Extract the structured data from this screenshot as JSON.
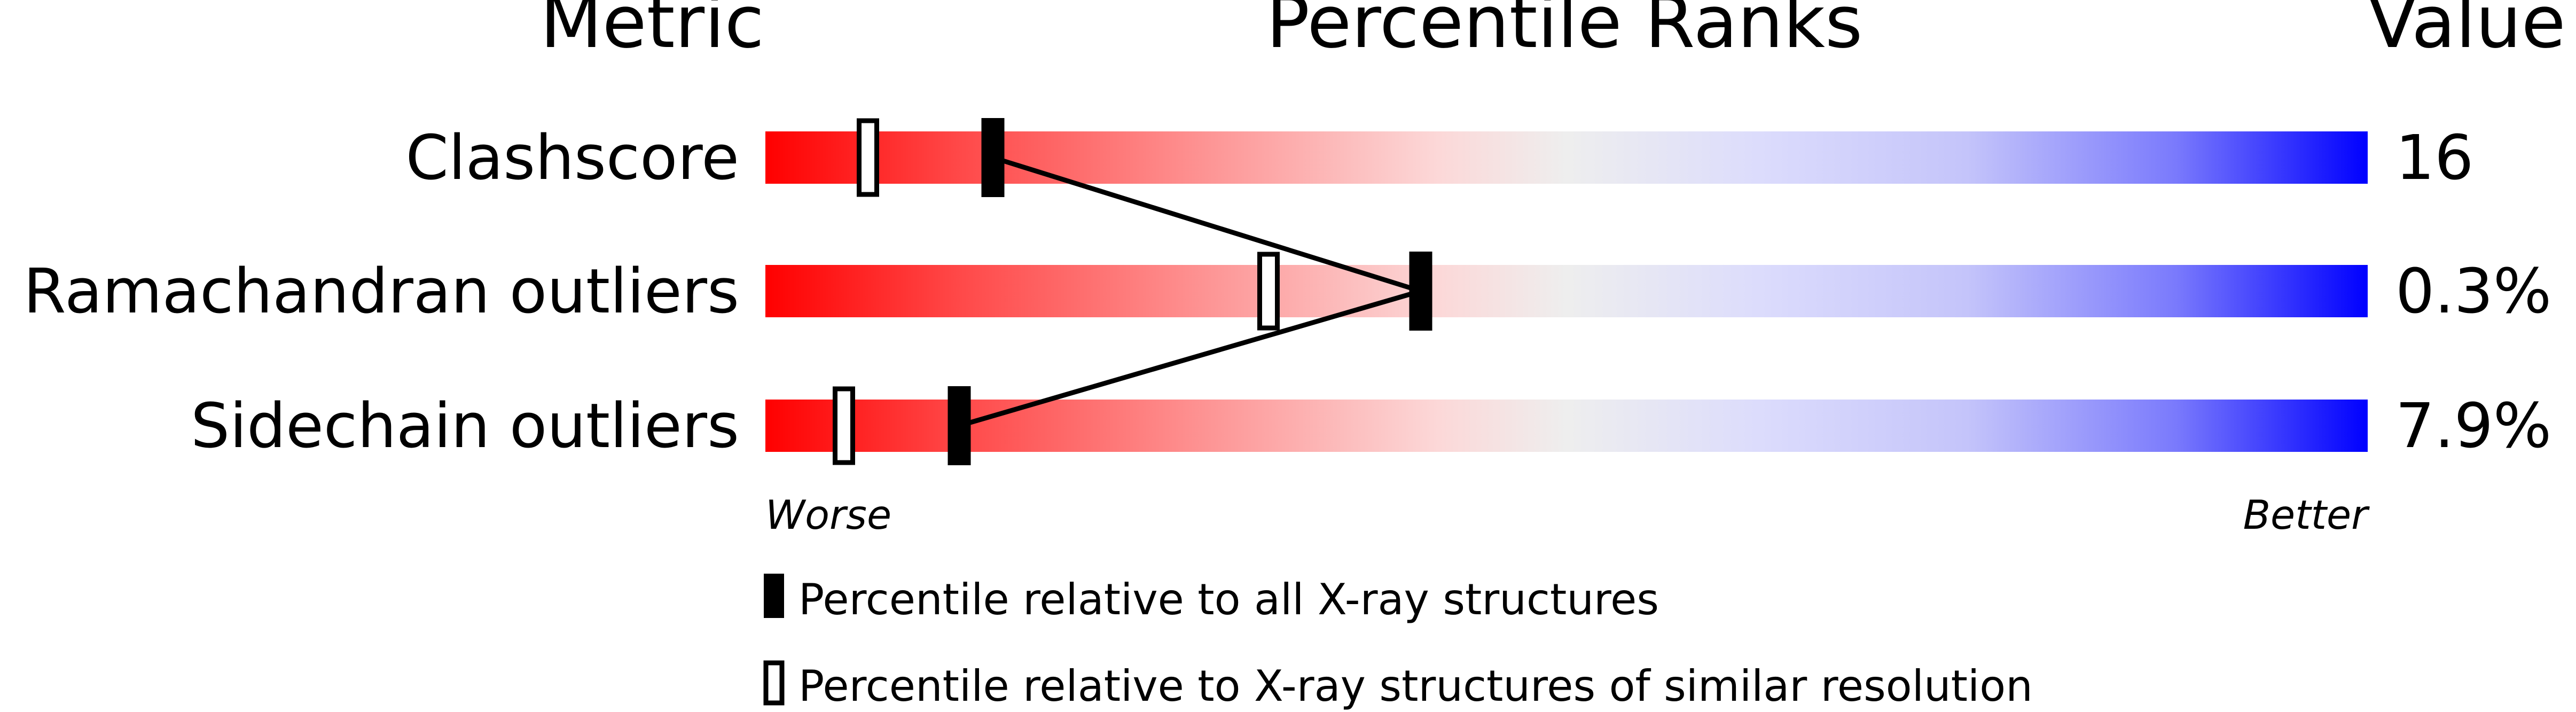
{
  "chart_data": {
    "type": "percentile-bar",
    "headers": {
      "metric": "Metric",
      "ranks": "Percentile Ranks",
      "value": "Value"
    },
    "xlim": [
      0,
      100
    ],
    "rows": [
      {
        "metric": "Clashscore",
        "value": "16",
        "percentile_all": 14.2,
        "percentile_similar": 6.4
      },
      {
        "metric": "Ramachandran outliers",
        "value": "0.3%",
        "percentile_all": 40.9,
        "percentile_similar": 31.4
      },
      {
        "metric": "Sidechain outliers",
        "value": "7.9%",
        "percentile_all": 12.1,
        "percentile_similar": 4.9
      }
    ],
    "axis": {
      "worse": "Worse",
      "better": "Better"
    },
    "legend": {
      "all": "Percentile relative to all X-ray structures",
      "similar": "Percentile relative to X-ray structures of similar resolution"
    },
    "colors": {
      "worse": "#ff0000",
      "middle": "#f0f0f0",
      "better": "#0000ff",
      "marker": "#000000"
    }
  }
}
